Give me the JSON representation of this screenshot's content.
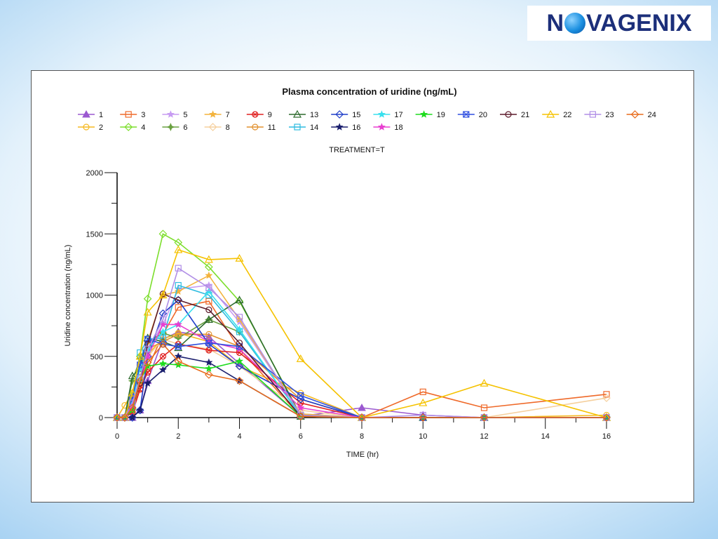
{
  "logo": {
    "text_left": "N",
    "text_right": "VAGENIX",
    "full": "NOVAGENIX"
  },
  "chart_data": {
    "type": "line",
    "title": "Plasma concentration of uridine (ng/mL)",
    "subtitle": "TREATMENT=T",
    "xlabel": "TIME (hr)",
    "ylabel": "Uridine concentration  (ng/mL)",
    "xlim": [
      0,
      16
    ],
    "ylim": [
      0,
      2000
    ],
    "xticks": [
      0,
      2,
      4,
      6,
      8,
      10,
      12,
      14,
      16
    ],
    "yticks": [
      0,
      500,
      1000,
      1500,
      2000
    ],
    "grid": false,
    "legend_position": "top",
    "x": [
      0,
      0.25,
      0.5,
      0.75,
      1,
      1.5,
      2,
      3,
      4,
      6,
      8,
      10,
      12,
      16
    ],
    "series": [
      {
        "name": "1",
        "color": "#9b59d0",
        "marker": "triangle",
        "values": [
          0,
          0,
          0,
          60,
          300,
          640,
          700,
          660,
          440,
          10,
          80,
          20,
          0,
          0
        ]
      },
      {
        "name": "2",
        "color": "#f5b921",
        "marker": "circle",
        "values": [
          0,
          100,
          200,
          420,
          520,
          640,
          690,
          620,
          420,
          200,
          0,
          0,
          0,
          20
        ]
      },
      {
        "name": "3",
        "color": "#ef6a2a",
        "marker": "square",
        "values": [
          0,
          0,
          60,
          240,
          400,
          680,
          900,
          950,
          560,
          10,
          0,
          210,
          80,
          190
        ]
      },
      {
        "name": "4",
        "color": "#7cde2c",
        "marker": "diamond",
        "values": [
          0,
          0,
          180,
          500,
          970,
          1500,
          1430,
          1230,
          950,
          20,
          0,
          0,
          0,
          0
        ]
      },
      {
        "name": "5",
        "color": "#c79cf2",
        "marker": "star",
        "values": [
          0,
          0,
          80,
          300,
          560,
          760,
          1050,
          1080,
          780,
          30,
          0,
          0,
          0,
          0
        ]
      },
      {
        "name": "6",
        "color": "#69a040",
        "marker": "star4",
        "values": [
          0,
          0,
          300,
          480,
          620,
          690,
          650,
          800,
          700,
          20,
          0,
          0,
          0,
          0
        ]
      },
      {
        "name": "7",
        "color": "#f3b33d",
        "marker": "star",
        "values": [
          0,
          0,
          150,
          420,
          620,
          1000,
          1030,
          1160,
          800,
          30,
          0,
          0,
          0,
          0
        ]
      },
      {
        "name": "8",
        "color": "#f5d09e",
        "marker": "diamond",
        "values": [
          0,
          0,
          60,
          300,
          500,
          640,
          600,
          560,
          420,
          60,
          0,
          0,
          0,
          160
        ]
      },
      {
        "name": "9",
        "color": "#e02020",
        "marker": "circlex",
        "values": [
          0,
          0,
          40,
          230,
          370,
          500,
          600,
          550,
          530,
          120,
          0,
          0,
          0,
          0
        ]
      },
      {
        "name": "11",
        "color": "#e2902d",
        "marker": "circle",
        "values": [
          0,
          0,
          80,
          330,
          560,
          620,
          680,
          680,
          580,
          150,
          0,
          0,
          0,
          0
        ]
      },
      {
        "name": "13",
        "color": "#2e6b2e",
        "marker": "triangleOpen",
        "values": [
          0,
          0,
          340,
          400,
          650,
          620,
          570,
          800,
          960,
          10,
          0,
          0,
          0,
          0
        ]
      },
      {
        "name": "14",
        "color": "#2ebce0",
        "marker": "square",
        "values": [
          0,
          0,
          160,
          530,
          640,
          650,
          1080,
          1000,
          700,
          20,
          0,
          0,
          0,
          0
        ]
      },
      {
        "name": "15",
        "color": "#1f3ec8",
        "marker": "diamond",
        "values": [
          0,
          0,
          0,
          60,
          500,
          850,
          960,
          600,
          420,
          150,
          0,
          0,
          0,
          0
        ]
      },
      {
        "name": "16",
        "color": "#1b1f6e",
        "marker": "star",
        "values": [
          0,
          0,
          0,
          60,
          280,
          390,
          500,
          450,
          300,
          10,
          0,
          0,
          0,
          0
        ]
      },
      {
        "name": "17",
        "color": "#38e0ee",
        "marker": "star",
        "values": [
          0,
          0,
          120,
          400,
          560,
          700,
          760,
          1030,
          720,
          10,
          0,
          0,
          0,
          0
        ]
      },
      {
        "name": "18",
        "color": "#e83fd0",
        "marker": "star",
        "values": [
          0,
          0,
          100,
          300,
          500,
          760,
          760,
          620,
          560,
          80,
          0,
          0,
          0,
          0
        ]
      },
      {
        "name": "19",
        "color": "#1edc1e",
        "marker": "star",
        "values": [
          0,
          0,
          60,
          300,
          420,
          440,
          430,
          400,
          460,
          10,
          0,
          0,
          0,
          0
        ]
      },
      {
        "name": "20",
        "color": "#2f4fe0",
        "marker": "squarex",
        "values": [
          0,
          0,
          160,
          430,
          640,
          600,
          580,
          610,
          580,
          180,
          0,
          0,
          0,
          0
        ]
      },
      {
        "name": "21",
        "color": "#5c1a2a",
        "marker": "circle",
        "values": [
          0,
          0,
          80,
          280,
          600,
          1010,
          960,
          880,
          610,
          10,
          0,
          0,
          0,
          0
        ]
      },
      {
        "name": "22",
        "color": "#f5c200",
        "marker": "triangleOpen",
        "values": [
          0,
          0,
          200,
          500,
          860,
          1000,
          1370,
          1290,
          1300,
          480,
          0,
          120,
          280,
          0
        ]
      },
      {
        "name": "23",
        "color": "#b08ee6",
        "marker": "square",
        "values": [
          0,
          0,
          120,
          320,
          560,
          800,
          1220,
          1060,
          820,
          20,
          0,
          20,
          0,
          0
        ]
      },
      {
        "name": "24",
        "color": "#e86b1b",
        "marker": "diamond",
        "values": [
          0,
          0,
          80,
          300,
          450,
          600,
          460,
          350,
          300,
          10,
          0,
          0,
          0,
          0
        ]
      }
    ],
    "legend_rows": [
      [
        "1",
        "3",
        "5",
        "7",
        "9",
        "13",
        "15",
        "17",
        "19",
        "20",
        "21",
        "22",
        "23",
        "24"
      ],
      [
        "2",
        "4",
        "6",
        "8",
        "11",
        "14",
        "16",
        "18"
      ]
    ]
  }
}
